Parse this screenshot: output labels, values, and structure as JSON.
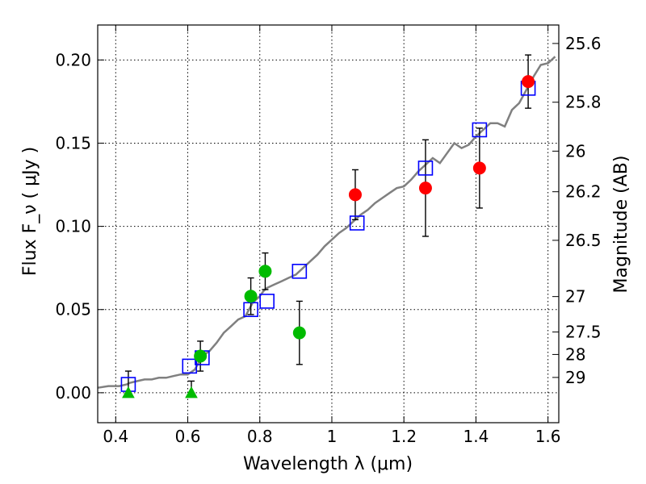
{
  "chart_data": {
    "type": "scatter",
    "xlabel": "Wavelength  λ (μm)",
    "ylabel": "Flux  F_ν  ( μJy )",
    "y2label": "Magnitude (AB)",
    "xlim": [
      0.35,
      1.63
    ],
    "ylim": [
      -0.018,
      0.221
    ],
    "grid": true,
    "xticks": [
      0.4,
      0.6,
      0.8,
      1.0,
      1.2,
      1.4,
      1.6
    ],
    "xtick_labels": [
      "0.4",
      "0.6",
      "0.8",
      "1",
      "1.2",
      "1.4",
      "1.6"
    ],
    "yticks": [
      0.0,
      0.05,
      0.1,
      0.15,
      0.2
    ],
    "ytick_labels": [
      "0.00",
      "0.05",
      "0.10",
      "0.15",
      "0.20"
    ],
    "mag_ticks": [
      {
        "label": "25.6",
        "flux": 0.2099
      },
      {
        "label": "25.8",
        "flux": 0.1746
      },
      {
        "label": "26",
        "flux": 0.1452
      },
      {
        "label": "26.2",
        "flux": 0.1208
      },
      {
        "label": "26.5",
        "flux": 0.0916
      },
      {
        "label": "27",
        "flux": 0.0578
      },
      {
        "label": "27.5",
        "flux": 0.0365
      },
      {
        "label": "28",
        "flux": 0.023
      },
      {
        "label": "29",
        "flux": 0.0092
      }
    ],
    "model_spectrum": {
      "color": "#808080",
      "x": [
        0.35,
        0.38,
        0.41,
        0.43,
        0.44,
        0.46,
        0.48,
        0.5,
        0.52,
        0.54,
        0.56,
        0.58,
        0.6,
        0.62,
        0.63,
        0.64,
        0.66,
        0.68,
        0.7,
        0.72,
        0.74,
        0.76,
        0.77,
        0.78,
        0.8,
        0.81,
        0.82,
        0.84,
        0.86,
        0.88,
        0.9,
        0.92,
        0.94,
        0.96,
        0.98,
        1.0,
        1.02,
        1.04,
        1.06,
        1.08,
        1.1,
        1.12,
        1.14,
        1.16,
        1.18,
        1.2,
        1.22,
        1.24,
        1.26,
        1.28,
        1.3,
        1.32,
        1.34,
        1.36,
        1.38,
        1.4,
        1.42,
        1.44,
        1.46,
        1.48,
        1.5,
        1.52,
        1.54,
        1.56,
        1.58,
        1.6,
        1.62
      ],
      "y": [
        0.003,
        0.004,
        0.004,
        0.005,
        0.006,
        0.007,
        0.008,
        0.008,
        0.009,
        0.009,
        0.01,
        0.011,
        0.011,
        0.014,
        0.018,
        0.022,
        0.025,
        0.03,
        0.036,
        0.04,
        0.044,
        0.046,
        0.05,
        0.054,
        0.058,
        0.061,
        0.063,
        0.065,
        0.067,
        0.069,
        0.071,
        0.075,
        0.079,
        0.083,
        0.088,
        0.092,
        0.096,
        0.099,
        0.103,
        0.107,
        0.11,
        0.114,
        0.117,
        0.12,
        0.123,
        0.124,
        0.128,
        0.133,
        0.137,
        0.141,
        0.138,
        0.144,
        0.15,
        0.147,
        0.149,
        0.154,
        0.158,
        0.162,
        0.162,
        0.16,
        0.17,
        0.174,
        0.182,
        0.19,
        0.197,
        0.198,
        0.202
      ]
    },
    "series": [
      {
        "name": "",
        "marker": "square-open",
        "color": "#0000ff",
        "x": [
          0.435,
          0.605,
          0.64,
          0.775,
          0.82,
          0.91,
          1.07,
          1.26,
          1.41,
          1.545
        ],
        "y": [
          0.005,
          0.016,
          0.021,
          0.05,
          0.055,
          0.073,
          0.102,
          0.135,
          0.158,
          0.183
        ]
      },
      {
        "name": "",
        "marker": "circle",
        "color": "#00bb00",
        "x": [
          0.635,
          0.775,
          0.815,
          0.91
        ],
        "y": [
          0.022,
          0.058,
          0.073,
          0.036
        ],
        "yerr": [
          0.009,
          0.011,
          0.011,
          0.019
        ]
      },
      {
        "name": "",
        "marker": "circle",
        "color": "#ff0000",
        "x": [
          1.065,
          1.26,
          1.41,
          1.545
        ],
        "y": [
          0.119,
          0.123,
          0.135,
          0.187
        ],
        "yerr": [
          0.015,
          0.029,
          0.024,
          0.016
        ]
      },
      {
        "name": "",
        "marker": "triangle-up",
        "color": "#00bb00",
        "x": [
          0.435,
          0.61
        ],
        "y": [
          0.0,
          0.0
        ],
        "yerr_upper": [
          0.013,
          0.007
        ]
      }
    ]
  }
}
